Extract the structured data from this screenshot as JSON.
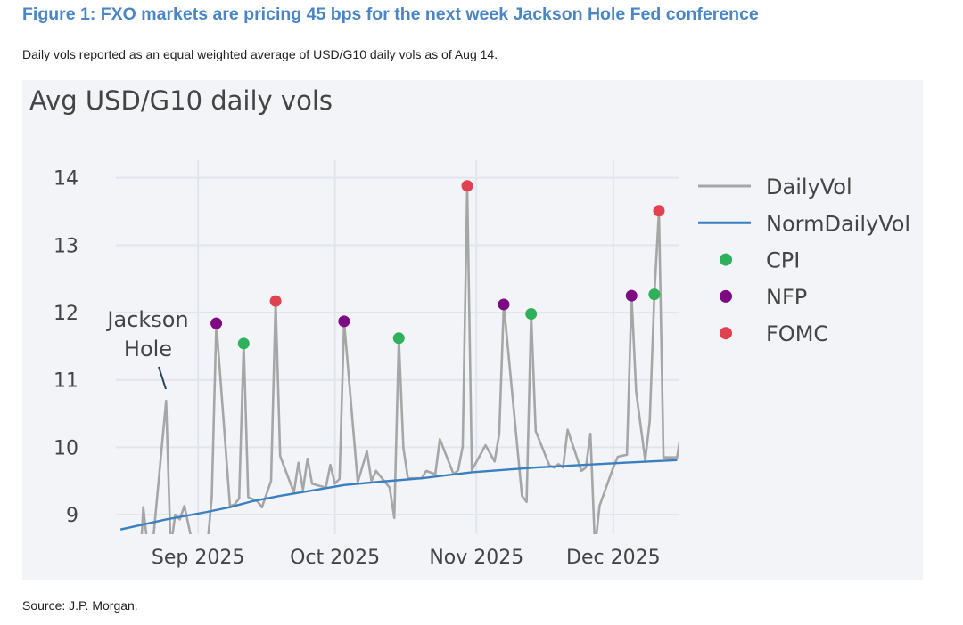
{
  "figure": {
    "title": "Figure 1: FXO markets are pricing 45 bps for the next week Jackson Hole Fed conference",
    "subtitle": "Daily vols reported as an equal weighted average of USD/G10 daily vols as of Aug 14.",
    "source": "Source: J.P. Morgan."
  },
  "chart_data": {
    "type": "line",
    "title": "Avg USD/G10 daily vols",
    "x_unit": "days since 2025-09-01",
    "xlim": [
      -18,
      105.5
    ],
    "ylim": [
      8.71,
      14.26
    ],
    "grid": true,
    "legend_position": "right",
    "yticks": [
      9,
      10,
      11,
      12,
      13,
      14
    ],
    "xticks": [
      {
        "value": 0,
        "label": "Sep 2025"
      },
      {
        "value": 30,
        "label": "Oct 2025"
      },
      {
        "value": 61,
        "label": "Nov 2025"
      },
      {
        "value": 91,
        "label": "Dec 2025"
      }
    ],
    "annotation": {
      "text_lines": [
        "Jackson",
        "Hole"
      ],
      "x": -7,
      "y": 10.69
    },
    "series": [
      {
        "name": "DailyVol",
        "kind": "line",
        "color": "#a6a6a6",
        "x": [
          -12.5,
          -12,
          -11,
          -10,
          -7,
          -6,
          -5,
          -4,
          -3,
          -1,
          2,
          3,
          4,
          7,
          8,
          9,
          10,
          11,
          13,
          14,
          16,
          17,
          18,
          21,
          22,
          23,
          24,
          25,
          28,
          29,
          30,
          31,
          32,
          35,
          37,
          38,
          39,
          42,
          43,
          44,
          45,
          46,
          49,
          50,
          52,
          53,
          56,
          57,
          58,
          59,
          60,
          63,
          65,
          66,
          67,
          71,
          72,
          73,
          74,
          77,
          78,
          79,
          80,
          81,
          84,
          85,
          86,
          87,
          88,
          91,
          92,
          94,
          95,
          96,
          98,
          99,
          100,
          101,
          102,
          105,
          106
        ],
        "y": [
          8.5,
          9.11,
          8.5,
          8.5,
          10.69,
          8.5,
          9.0,
          8.93,
          9.13,
          8.5,
          8.5,
          9.26,
          11.84,
          9.13,
          9.15,
          9.24,
          11.54,
          9.26,
          9.2,
          9.11,
          9.5,
          12.17,
          9.87,
          9.33,
          9.77,
          9.37,
          9.83,
          9.46,
          9.4,
          9.74,
          9.46,
          9.53,
          11.87,
          9.48,
          9.94,
          9.5,
          9.65,
          9.4,
          8.95,
          11.62,
          9.99,
          9.54,
          9.54,
          9.65,
          9.6,
          10.12,
          9.6,
          9.66,
          10.01,
          13.88,
          9.66,
          10.03,
          9.79,
          10.2,
          12.12,
          9.28,
          9.19,
          11.98,
          10.24,
          9.73,
          9.7,
          9.75,
          9.7,
          10.26,
          9.65,
          9.7,
          10.2,
          8.5,
          9.13,
          9.7,
          9.86,
          9.89,
          12.25,
          10.83,
          9.81,
          10.39,
          12.27,
          13.51,
          9.85,
          9.85,
          10.3
        ]
      },
      {
        "name": "NormDailyVol",
        "kind": "line",
        "color": "#3a7fc1",
        "x": [
          -17,
          -7,
          2,
          7,
          12,
          18,
          26,
          32,
          40,
          49,
          60,
          74,
          93,
          105
        ],
        "y": [
          8.78,
          8.93,
          9.04,
          9.11,
          9.2,
          9.28,
          9.37,
          9.44,
          9.49,
          9.54,
          9.63,
          9.7,
          9.77,
          9.81
        ]
      },
      {
        "name": "CPI",
        "kind": "markers",
        "color": "#2eb15a",
        "x": [
          10,
          44,
          73,
          100
        ],
        "y": [
          11.54,
          11.62,
          11.98,
          12.27
        ]
      },
      {
        "name": "NFP",
        "kind": "markers",
        "color": "#7d0a82",
        "x": [
          4,
          32,
          67,
          95
        ],
        "y": [
          11.84,
          11.87,
          12.12,
          12.25
        ]
      },
      {
        "name": "FOMC",
        "kind": "markers",
        "color": "#e0424f",
        "x": [
          17,
          59,
          101
        ],
        "y": [
          12.17,
          13.88,
          13.51
        ]
      }
    ]
  }
}
